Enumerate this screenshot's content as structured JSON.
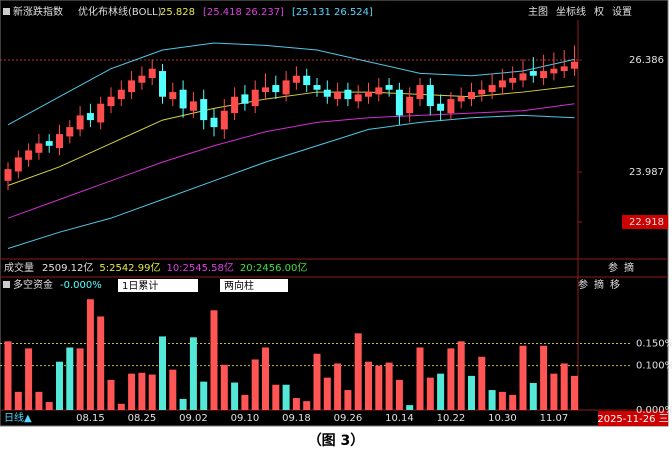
{
  "header": {
    "toolbar": [
      "主图",
      "坐标线",
      "权",
      "设置"
    ]
  },
  "chart_data": [
    {
      "type": "candlestick",
      "title": "新涨跌指数",
      "indicator": "优化布林线(BOLL)",
      "indicator_values": [
        {
          "text": "25.828",
          "color": "#e8e84a"
        },
        {
          "text": "[25.418 26.237]",
          "color": "#e040e0"
        },
        {
          "text": "[25.131 26.524]",
          "color": "#54d8ff"
        }
      ],
      "up_color": "#ff4d4d",
      "down_color": "#54ffff",
      "open": [
        23.8,
        24.0,
        24.25,
        24.4,
        24.65,
        24.5,
        24.75,
        24.9,
        25.25,
        25.05,
        25.4,
        25.55,
        25.7,
        25.9,
        26.0,
        26.15,
        25.55,
        25.75,
        25.3,
        25.55,
        25.15,
        24.9,
        25.25,
        25.65,
        25.4,
        25.7,
        25.85,
        25.65,
        25.9,
        26.05,
        25.85,
        25.75,
        25.55,
        25.75,
        25.5,
        25.6,
        25.65,
        25.85,
        25.75,
        25.25,
        25.55,
        25.85,
        25.45,
        25.25,
        25.5,
        25.55,
        25.65,
        25.7,
        25.8,
        25.9,
        25.95,
        26.15,
        26.0,
        26.1,
        26.15,
        26.2
      ],
      "high": [
        24.2,
        24.45,
        24.6,
        24.8,
        24.8,
        25.0,
        25.1,
        25.4,
        25.45,
        25.6,
        25.8,
        25.95,
        26.15,
        26.25,
        26.4,
        26.3,
        25.9,
        25.95,
        25.7,
        25.75,
        25.35,
        25.55,
        25.8,
        25.85,
        25.95,
        26.1,
        26.05,
        26.15,
        26.25,
        26.2,
        26.0,
        25.95,
        25.9,
        25.9,
        25.85,
        25.9,
        26.0,
        26.0,
        25.9,
        25.8,
        26.0,
        26.0,
        25.65,
        25.7,
        25.8,
        25.9,
        25.95,
        26.1,
        26.2,
        26.25,
        26.4,
        26.45,
        26.5,
        26.55,
        26.6,
        26.7
      ],
      "low": [
        23.6,
        23.85,
        24.1,
        24.25,
        24.4,
        24.35,
        24.6,
        24.75,
        24.95,
        24.9,
        25.25,
        25.4,
        25.55,
        25.75,
        25.85,
        25.45,
        25.4,
        25.15,
        25.15,
        24.9,
        24.75,
        24.7,
        25.1,
        25.3,
        25.25,
        25.55,
        25.55,
        25.5,
        25.75,
        25.7,
        25.6,
        25.45,
        25.4,
        25.4,
        25.35,
        25.45,
        25.5,
        25.6,
        25.0,
        25.05,
        25.4,
        25.2,
        25.1,
        25.1,
        25.35,
        25.4,
        25.5,
        25.55,
        25.65,
        25.75,
        25.8,
        25.9,
        25.85,
        25.95,
        26.0,
        26.05
      ],
      "close": [
        24.05,
        24.3,
        24.45,
        24.6,
        24.55,
        24.8,
        24.95,
        25.2,
        25.1,
        25.45,
        25.6,
        25.75,
        25.95,
        26.05,
        26.2,
        25.6,
        25.7,
        25.35,
        25.5,
        25.1,
        24.95,
        25.3,
        25.6,
        25.45,
        25.75,
        25.8,
        25.7,
        25.95,
        26.05,
        25.85,
        25.75,
        25.6,
        25.7,
        25.55,
        25.65,
        25.7,
        25.8,
        25.75,
        25.2,
        25.6,
        25.85,
        25.4,
        25.3,
        25.55,
        25.6,
        25.7,
        25.75,
        25.85,
        25.95,
        26.0,
        26.1,
        26.05,
        26.15,
        26.2,
        26.25,
        26.35
      ],
      "lines": {
        "x": [
          0,
          5,
          10,
          15,
          20,
          25,
          30,
          35,
          40,
          45,
          50,
          55
        ],
        "series": [
          {
            "color": "#4fc8e8",
            "values": [
              25.0,
              25.6,
              26.2,
              26.6,
              26.75,
              26.7,
              26.6,
              26.35,
              26.1,
              26.05,
              26.15,
              26.4
            ]
          },
          {
            "color": "#d8d040",
            "values": [
              23.7,
              24.1,
              24.6,
              25.1,
              25.35,
              25.55,
              25.7,
              25.7,
              25.65,
              25.6,
              25.7,
              25.83
            ]
          },
          {
            "color": "#d030d0",
            "values": [
              23.0,
              23.4,
              23.8,
              24.2,
              24.55,
              24.85,
              25.05,
              25.15,
              25.2,
              25.25,
              25.3,
              25.45
            ]
          },
          {
            "color": "#4fc8e8",
            "values": [
              22.35,
              22.7,
              23.0,
              23.4,
              23.8,
              24.2,
              24.55,
              24.9,
              25.05,
              25.15,
              25.2,
              25.15
            ]
          }
        ]
      },
      "ylim": [
        22.147,
        27.243
      ],
      "yticks": [
        22.918,
        23.987,
        26.386
      ]
    },
    {
      "type": "bar",
      "title": "多空资金",
      "value_text": "-0.000%",
      "controls": [
        "1日累计",
        "两向柱"
      ],
      "tools": [
        "参",
        "摘",
        "移"
      ],
      "categories": [
        null,
        null,
        null,
        null,
        null,
        null,
        null,
        null,
        "08.15",
        null,
        null,
        null,
        null,
        "08.25",
        null,
        null,
        null,
        null,
        "09.02",
        null,
        null,
        null,
        null,
        "09.10",
        null,
        null,
        null,
        null,
        "09.18",
        null,
        null,
        null,
        null,
        "09.26",
        null,
        null,
        null,
        null,
        "10.14",
        null,
        null,
        null,
        null,
        "10.22",
        null,
        null,
        null,
        null,
        "10.30",
        null,
        null,
        null,
        null,
        "11.07",
        null,
        null
      ],
      "values": [
        0.155,
        0.041,
        0.139,
        0.041,
        0.018,
        0.109,
        0.141,
        0.139,
        0.25,
        0.211,
        0.068,
        0.014,
        0.082,
        0.084,
        0.08,
        0.166,
        0.091,
        0.025,
        0.164,
        0.064,
        0.225,
        0.102,
        0.062,
        0.034,
        0.114,
        0.141,
        0.057,
        0.057,
        0.027,
        0.02,
        0.127,
        0.073,
        0.105,
        0.045,
        0.173,
        0.109,
        0.1,
        0.107,
        0.068,
        0.011,
        0.141,
        0.073,
        0.082,
        0.139,
        0.155,
        0.077,
        0.12,
        0.045,
        0.041,
        0.034,
        0.145,
        0.061,
        0.145,
        0.082,
        0.105,
        0.077
      ],
      "colors": [
        "#ff5555",
        "#ff5555",
        "#ff5555",
        "#ff5555",
        "#ff5555",
        "#54e8d8",
        "#54e8d8",
        "#ff5555",
        "#ff5555",
        "#ff5555",
        "#ff5555",
        "#ff5555",
        "#ff5555",
        "#ff5555",
        "#ff5555",
        "#54e8d8",
        "#ff5555",
        "#54e8d8",
        "#54e8d8",
        "#54e8d8",
        "#ff5555",
        "#ff5555",
        "#54e8d8",
        "#ff5555",
        "#ff5555",
        "#ff5555",
        "#ff5555",
        "#54e8d8",
        "#ff5555",
        "#ff5555",
        "#ff5555",
        "#ff5555",
        "#ff5555",
        "#ff5555",
        "#ff5555",
        "#ff5555",
        "#ff5555",
        "#ff5555",
        "#ff5555",
        "#54e8d8",
        "#ff5555",
        "#ff5555",
        "#54e8d8",
        "#ff5555",
        "#ff5555",
        "#54e8d8",
        "#ff5555",
        "#54e8d8",
        "#ff5555",
        "#ff5555",
        "#ff5555",
        "#54e8d8",
        "#ff5555",
        "#ff5555",
        "#ff5555",
        "#ff5555"
      ],
      "ylim": [
        0,
        0.264
      ],
      "yticks": [
        {
          "value": 0,
          "label": "0.000%"
        },
        {
          "value": 0.1,
          "label": "0.100%"
        },
        {
          "value": 0.15,
          "label": "0.150%"
        }
      ],
      "grid": true
    }
  ],
  "volume": {
    "label": "成交量",
    "items": [
      {
        "text": "2509.12亿",
        "color": "#e0e0e0"
      },
      {
        "text": "5:2542.99亿",
        "color": "#e8e84a"
      },
      {
        "text": "10:2545.58亿",
        "color": "#e040e0"
      },
      {
        "text": "20:2456.00亿",
        "color": "#40e040"
      }
    ],
    "tools": [
      "参",
      "摘"
    ]
  },
  "footer": {
    "period": "日线▲",
    "date": "2025-11-26 三"
  },
  "caption": "（图 3）"
}
